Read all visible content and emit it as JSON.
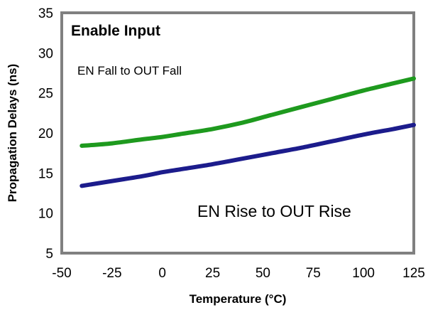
{
  "chart_data": {
    "type": "line",
    "title": "Enable Input",
    "xlabel": "Temperature (°C)",
    "ylabel": "Propagation Delays (ns)",
    "xlim": [
      -50,
      125
    ],
    "ylim": [
      5,
      35
    ],
    "xticks": [
      "-50",
      "-25",
      "0",
      "25",
      "50",
      "75",
      "100",
      "125"
    ],
    "yticks": [
      "5",
      "10",
      "15",
      "20",
      "25",
      "30",
      "35"
    ],
    "grid": false,
    "annotations": [
      "EN Fall to OUT Fall",
      "EN Rise to OUT Rise"
    ],
    "series": [
      {
        "name": "EN Fall to OUT Fall",
        "color": "#1e9a1e",
        "x": [
          -40,
          -25,
          -10,
          0,
          10,
          25,
          40,
          55,
          70,
          85,
          100,
          115,
          125
        ],
        "y": [
          18.4,
          18.7,
          19.2,
          19.5,
          19.9,
          20.5,
          21.3,
          22.3,
          23.3,
          24.3,
          25.3,
          26.2,
          26.8
        ]
      },
      {
        "name": "EN Rise to OUT Rise",
        "color": "#1c1c8c",
        "x": [
          -40,
          -25,
          -10,
          0,
          10,
          25,
          40,
          55,
          70,
          85,
          100,
          115,
          125
        ],
        "y": [
          13.4,
          14.0,
          14.6,
          15.1,
          15.5,
          16.1,
          16.8,
          17.5,
          18.2,
          19.0,
          19.8,
          20.5,
          21.0
        ]
      }
    ]
  }
}
